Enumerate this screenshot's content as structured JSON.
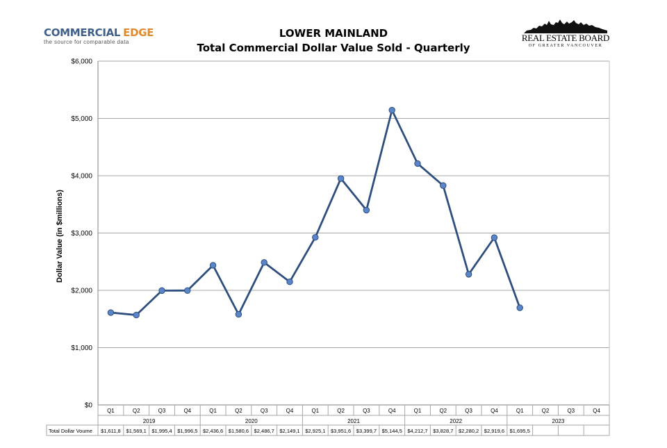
{
  "header": {
    "left_logo_word1": "COMMERCIAL",
    "left_logo_word2": "EDGE",
    "left_logo_tagline": "the source for comparable data",
    "title": "LOWER MAINLAND",
    "subtitle": "Total Commercial Dollar Value Sold - Quarterly",
    "right_logo_name": "REAL ESTATE BOARD",
    "right_logo_sub": "OF GREATER VANCOUVER"
  },
  "colors": {
    "line": "#2e4e7e",
    "marker_fill": "#5b85c9",
    "marker_stroke": "#2e4e7e",
    "grid": "#a6a6a6"
  },
  "chart_data": {
    "type": "line",
    "title": "LOWER MAINLAND",
    "subtitle": "Total Commercial Dollar Value Sold - Quarterly",
    "ylabel": "Dollar Value (in $millions)",
    "ylim": [
      0,
      6000
    ],
    "yticks": [
      0,
      1000,
      2000,
      3000,
      4000,
      5000,
      6000
    ],
    "ytick_labels": [
      "$0",
      "$1,000",
      "$2,000",
      "$3,000",
      "$4,000",
      "$5,000",
      "$6,000"
    ],
    "grid": true,
    "quarters": [
      "Q1",
      "Q2",
      "Q3",
      "Q4",
      "Q1",
      "Q2",
      "Q3",
      "Q4",
      "Q1",
      "Q2",
      "Q3",
      "Q4",
      "Q1",
      "Q2",
      "Q3",
      "Q4",
      "Q1",
      "Q2",
      "Q3",
      "Q4"
    ],
    "years": [
      "2019",
      "2020",
      "2021",
      "2022",
      "2023"
    ],
    "series": [
      {
        "values": [
          1611.8,
          1569.1,
          1995.4,
          1996.5,
          2436.6,
          1580.6,
          2486.7,
          2149.1,
          2925.1,
          3951.6,
          3399.7,
          5144.5,
          4212.7,
          3828.7,
          2280.2,
          2919.6,
          1695.5,
          null,
          null,
          null
        ]
      }
    ],
    "table": {
      "row_label": "Total Dollar Voume",
      "cells": [
        "$1,611,8",
        "$1,569,1",
        "$1,995,4",
        "$1,996,5",
        "$2,436,6",
        "$1,580,6",
        "$2,486,7",
        "$2,149,1",
        "$2,925,1",
        "$3,951,6",
        "$3,399,7",
        "$5,144,5",
        "$4,212,7",
        "$3,828,7",
        "$2,280,2",
        "$2,919,6",
        "$1,695,5",
        "",
        "",
        ""
      ]
    }
  }
}
